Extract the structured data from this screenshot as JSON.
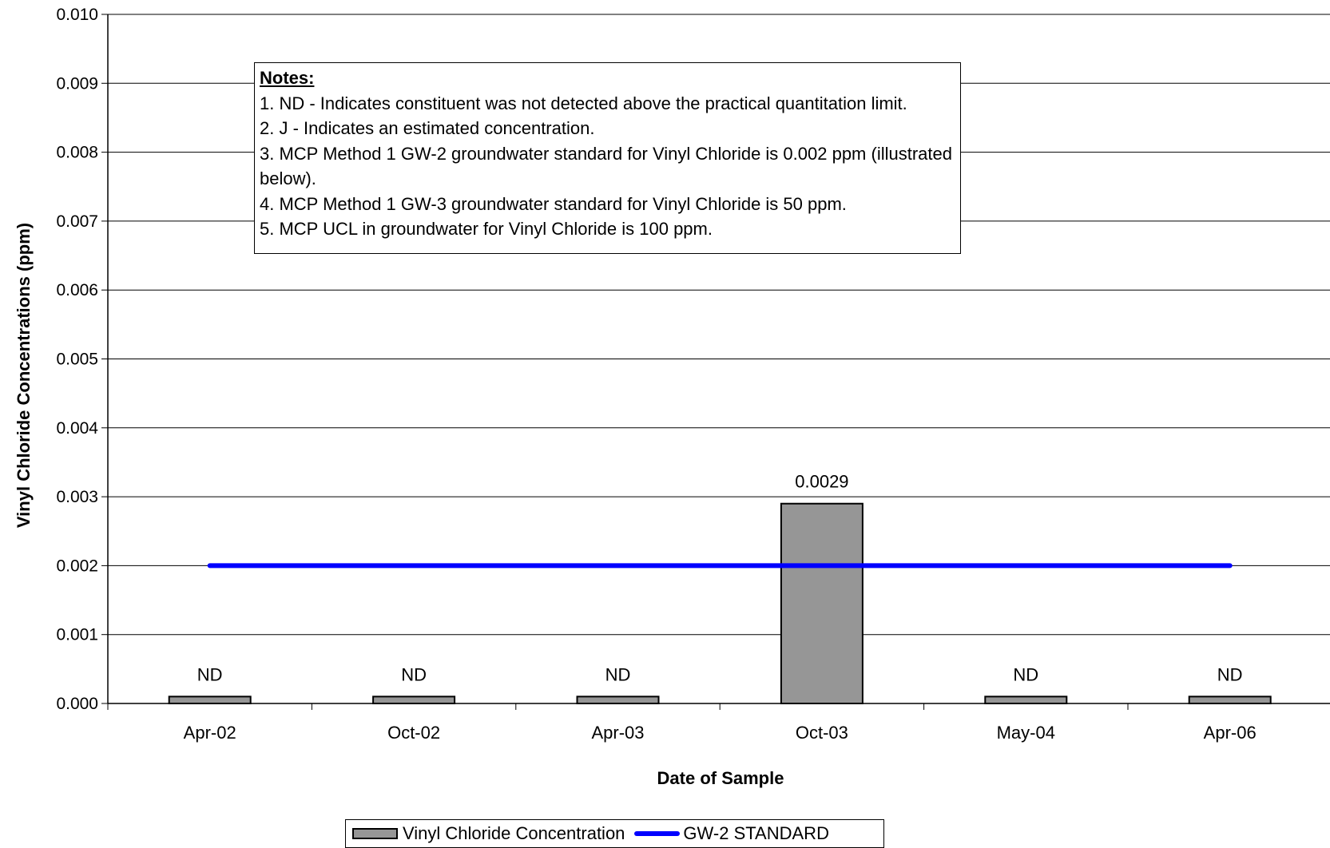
{
  "chart_data": {
    "type": "bar",
    "categories": [
      "Apr-02",
      "Oct-02",
      "Apr-03",
      "Oct-03",
      "May-04",
      "Apr-06"
    ],
    "series": [
      {
        "name": "Vinyl Chloride Concentration",
        "type": "bar",
        "values": [
          0.0001,
          0.0001,
          0.0001,
          0.0029,
          0.0001,
          0.0001
        ],
        "data_labels": [
          "ND",
          "ND",
          "ND",
          "0.0029",
          "ND",
          "ND"
        ],
        "color": "#969696"
      },
      {
        "name": "GW-2 STANDARD",
        "type": "line",
        "values": [
          0.002,
          0.002,
          0.002,
          0.002,
          0.002,
          0.002
        ],
        "color": "#0000ff"
      }
    ],
    "xlabel": "Date of Sample",
    "ylabel": "Vinyl Chloride Concentrations (ppm)",
    "ylim": [
      0,
      0.01
    ],
    "yticks": [
      "0.000",
      "0.001",
      "0.002",
      "0.003",
      "0.004",
      "0.005",
      "0.006",
      "0.007",
      "0.008",
      "0.009",
      "0.010"
    ],
    "grid": true,
    "legend_position": "bottom"
  },
  "notes": {
    "title": "Notes:",
    "lines": [
      "1.  ND - Indicates constituent was not detected above the practical quantitation limit.",
      "2.  J - Indicates an estimated concentration.",
      "3.  MCP Method 1 GW-2 groundwater standard for Vinyl Chloride is 0.002 ppm (illustrated below).",
      "4.  MCP Method 1 GW-3 groundwater standard for Vinyl Chloride is 50 ppm.",
      "5.  MCP UCL in groundwater for Vinyl Chloride is 100 ppm."
    ]
  }
}
